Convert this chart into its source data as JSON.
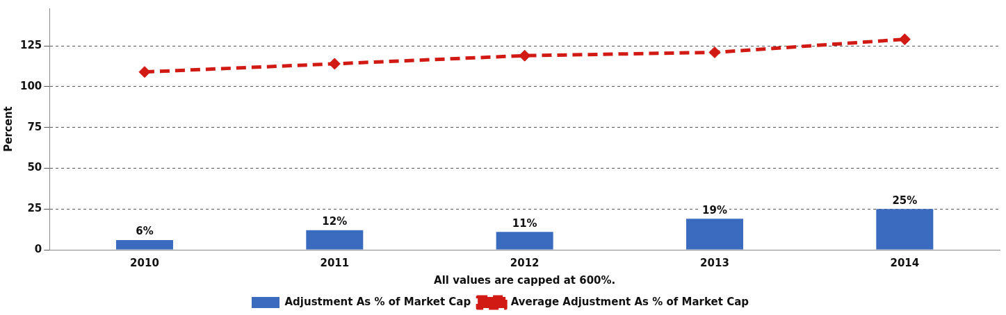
{
  "chart_data": {
    "type": "bar",
    "categories": [
      "2010",
      "2011",
      "2012",
      "2013",
      "2014"
    ],
    "ylabel": "Percent",
    "ylim": [
      0,
      148
    ],
    "yticks": [
      0,
      25,
      50,
      75,
      100,
      125
    ],
    "grid": "y",
    "legend": "bottom",
    "annotations": [
      "All values are capped at 600%."
    ],
    "series": [
      {
        "name": "Adjustment As % of Market Cap",
        "color": "#3a6bbf",
        "values": [
          6,
          12,
          11,
          19,
          25
        ],
        "value_labels": [
          "6%",
          "12%",
          "11%",
          "19%",
          "25%"
        ]
      },
      {
        "name": "Average Adjustment As % of Market Cap",
        "type": "line",
        "color": "#d11a14",
        "values": [
          109,
          114,
          119,
          121,
          129
        ],
        "marker": "diamond",
        "line_style": "dashed"
      }
    ]
  }
}
